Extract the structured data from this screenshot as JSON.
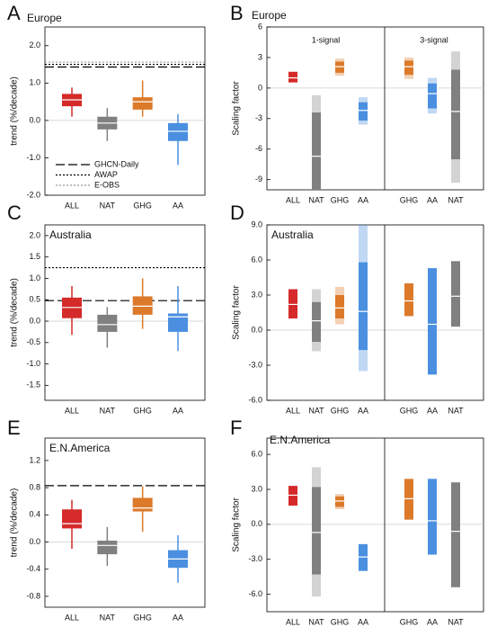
{
  "chart_data": [
    {
      "type": "box",
      "panel": "A",
      "title": "Europe",
      "ylabel": "trend (%/decade)",
      "ylim": [
        -2.0,
        2.5
      ],
      "yticks": [
        {
          "value": 2.0,
          "label": "2.0"
        },
        {
          "value": 1.0,
          "label": "1.0"
        },
        {
          "value": 0.0,
          "label": "0.0"
        },
        {
          "value": -1.0,
          "label": "-1.0"
        },
        {
          "value": -2.0,
          "label": "-2.0"
        }
      ],
      "categories": [
        "ALL",
        "NAT",
        "GHG",
        "AA"
      ],
      "colors": [
        "#d42a2a",
        "#808080",
        "#dc7a2a",
        "#4a8fe0"
      ],
      "boxes": [
        {
          "low": 0.1,
          "q1": 0.38,
          "median": 0.55,
          "q3": 0.71,
          "high": 0.88
        },
        {
          "low": -0.55,
          "q1": -0.24,
          "median": -0.07,
          "q3": 0.1,
          "high": 0.33
        },
        {
          "low": 0.1,
          "q1": 0.29,
          "median": 0.5,
          "q3": 0.62,
          "high": 1.07
        },
        {
          "low": -1.19,
          "q1": -0.55,
          "median": -0.29,
          "q3": -0.07,
          "high": 0.17
        }
      ],
      "ref_lines": [
        {
          "name": "GHCN-Daily",
          "value": 1.43,
          "style": "dashed",
          "color": "#000000"
        },
        {
          "name": "AWAP",
          "value": 1.5,
          "style": "dotted",
          "color": "#000000"
        },
        {
          "name": "E-OBS",
          "value": 1.56,
          "style": "dotted",
          "color": "#999999"
        }
      ],
      "legend": "lower left"
    },
    {
      "type": "interval",
      "panel": "B",
      "title": "Europe",
      "ylabel": "Scaling factor",
      "ylim": [
        -10,
        6
      ],
      "yticks": [
        6,
        3,
        0,
        -3,
        -6,
        -9
      ],
      "groups": [
        {
          "label": "1-signal",
          "categories": [
            "ALL",
            "NAT",
            "GHG",
            "AA"
          ],
          "colors": [
            "#d42a2a",
            "#808080",
            "#dc7a2a",
            "#4a8fe0"
          ],
          "light": [
            null,
            [
              -10,
              -0.7
            ],
            [
              1.2,
              2.9
            ],
            [
              -3.6,
              -0.9
            ]
          ],
          "dark": [
            [
              0.55,
              1.6
            ],
            [
              -10,
              -2.4
            ],
            [
              1.5,
              2.6
            ],
            [
              -3.2,
              -1.4
            ]
          ],
          "best": [
            1.0,
            -6.7,
            2.1,
            -2.2
          ]
        },
        {
          "label": "3-signal",
          "categories": [
            "GHG",
            "AA",
            "NAT"
          ],
          "colors": [
            "#dc7a2a",
            "#4a8fe0",
            "#808080"
          ],
          "light": [
            [
              0.9,
              3.0
            ],
            [
              -2.5,
              1.0
            ],
            [
              -9.3,
              3.6
            ]
          ],
          "dark": [
            [
              1.3,
              2.7
            ],
            [
              -2.0,
              0.45
            ],
            [
              -7.0,
              1.8
            ]
          ],
          "best": [
            2.1,
            -0.55,
            -2.3
          ]
        }
      ]
    },
    {
      "type": "box",
      "panel": "C",
      "title": "Australia",
      "ylabel": "trend (%/decade)",
      "ylim": [
        -1.85,
        2.25
      ],
      "yticks": [
        {
          "value": 2.0,
          "label": "2.0"
        },
        {
          "value": 1.5,
          "label": "1.5"
        },
        {
          "value": 1.0,
          "label": "1.0"
        },
        {
          "value": 0.5,
          "label": "0.5"
        },
        {
          "value": 0.0,
          "label": "0.0"
        },
        {
          "value": -0.5,
          "label": "-0.5"
        },
        {
          "value": -1.0,
          "label": "-1.0"
        },
        {
          "value": -1.5,
          "label": "-1.5"
        }
      ],
      "categories": [
        "ALL",
        "NAT",
        "GHG",
        "AA"
      ],
      "colors": [
        "#d42a2a",
        "#808080",
        "#dc7a2a",
        "#4a8fe0"
      ],
      "boxes": [
        {
          "low": -0.32,
          "q1": 0.07,
          "median": 0.32,
          "q3": 0.55,
          "high": 0.82
        },
        {
          "low": -0.62,
          "q1": -0.25,
          "median": -0.08,
          "q3": 0.15,
          "high": 0.33
        },
        {
          "low": -0.18,
          "q1": 0.15,
          "median": 0.35,
          "q3": 0.58,
          "high": 1.0
        },
        {
          "low": -0.7,
          "q1": -0.25,
          "median": 0.1,
          "q3": 0.18,
          "high": 0.82
        }
      ],
      "ref_lines": [
        {
          "value": 0.48,
          "style": "dashed",
          "color": "#000000"
        },
        {
          "value": 1.25,
          "style": "dotted",
          "color": "#000000"
        }
      ]
    },
    {
      "type": "interval",
      "panel": "D",
      "title": "Australia",
      "ylabel": "Scaling factor",
      "ylim": [
        -6,
        9
      ],
      "yticks": [
        {
          "value": 9,
          "label": "9.0"
        },
        {
          "value": 6,
          "label": "6.0"
        },
        {
          "value": 3,
          "label": "3.0"
        },
        {
          "value": 0,
          "label": "0.0"
        },
        {
          "value": -3,
          "label": "-3.0"
        },
        {
          "value": -6,
          "label": "-6.0"
        }
      ],
      "groups": [
        {
          "categories": [
            "ALL",
            "NAT",
            "GHG",
            "AA"
          ],
          "colors": [
            "#d42a2a",
            "#808080",
            "#dc7a2a",
            "#4a8fe0"
          ],
          "light": [
            null,
            [
              -1.8,
              3.5
            ],
            [
              0.5,
              3.7
            ],
            [
              -3.5,
              9.0
            ]
          ],
          "dark": [
            [
              1.0,
              3.5
            ],
            [
              -1.0,
              2.4
            ],
            [
              1.0,
              3.0
            ],
            [
              -1.7,
              5.8
            ]
          ],
          "best": [
            2.2,
            0.8,
            1.9,
            1.6
          ]
        },
        {
          "categories": [
            "GHG",
            "AA",
            "NAT"
          ],
          "colors": [
            "#dc7a2a",
            "#4a8fe0",
            "#808080"
          ],
          "light": [
            null,
            null,
            null
          ],
          "dark": [
            [
              1.2,
              4.0
            ],
            [
              -3.8,
              5.3
            ],
            [
              0.3,
              5.9
            ]
          ],
          "best": [
            2.5,
            0.5,
            2.9
          ]
        }
      ]
    },
    {
      "type": "box",
      "panel": "E",
      "title": "E.N.America",
      "ylabel": "trend (%/decade)",
      "ylim": [
        -0.96,
        1.53
      ],
      "yticks": [
        1.2,
        0.8,
        0.4,
        {
          "value": 0.0,
          "label": "0.0"
        },
        -0.4,
        -0.8
      ],
      "categories": [
        "ALL",
        "NAT",
        "GHG",
        "AA"
      ],
      "colors": [
        "#d42a2a",
        "#808080",
        "#dc7a2a",
        "#4a8fe0"
      ],
      "boxes": [
        {
          "low": -0.1,
          "q1": 0.2,
          "median": 0.27,
          "q3": 0.48,
          "high": 0.62
        },
        {
          "low": -0.35,
          "q1": -0.18,
          "median": -0.05,
          "q3": 0.02,
          "high": 0.22
        },
        {
          "low": 0.15,
          "q1": 0.45,
          "median": 0.5,
          "q3": 0.65,
          "high": 0.82
        },
        {
          "low": -0.6,
          "q1": -0.38,
          "median": -0.25,
          "q3": -0.12,
          "high": 0.1
        }
      ],
      "ref_lines": [
        {
          "value": 0.83,
          "style": "dashed",
          "color": "#000000"
        }
      ]
    },
    {
      "type": "interval",
      "panel": "F",
      "title": "E.N.America",
      "ylabel": "Scaling factor",
      "ylim": [
        -7.5,
        7.4
      ],
      "yticks": [
        {
          "value": 6,
          "label": "6.0"
        },
        {
          "value": 3,
          "label": "3.0"
        },
        {
          "value": 0,
          "label": "0.0"
        },
        {
          "value": -3,
          "label": "-3.0"
        },
        {
          "value": -6,
          "label": "-6.0"
        }
      ],
      "groups": [
        {
          "categories": [
            "ALL",
            "NAT",
            "GHG",
            "AA"
          ],
          "colors": [
            "#d42a2a",
            "#808080",
            "#dc7a2a",
            "#4a8fe0"
          ],
          "light": [
            null,
            [
              -6.2,
              4.9
            ],
            [
              1.3,
              2.6
            ],
            null
          ],
          "dark": [
            [
              1.6,
              3.3
            ],
            [
              -4.3,
              3.2
            ],
            [
              1.5,
              2.4
            ],
            [
              -4.0,
              -1.7
            ]
          ],
          "best": [
            2.5,
            -0.7,
            2.0,
            -2.8
          ]
        },
        {
          "categories": [
            "GHG",
            "AA",
            "NAT"
          ],
          "colors": [
            "#dc7a2a",
            "#4a8fe0",
            "#808080"
          ],
          "light": [
            null,
            null,
            null
          ],
          "dark": [
            [
              0.4,
              3.9
            ],
            [
              -2.6,
              3.9
            ],
            [
              -5.4,
              3.6
            ]
          ],
          "best": [
            2.2,
            0.3,
            -0.6
          ]
        }
      ]
    }
  ]
}
